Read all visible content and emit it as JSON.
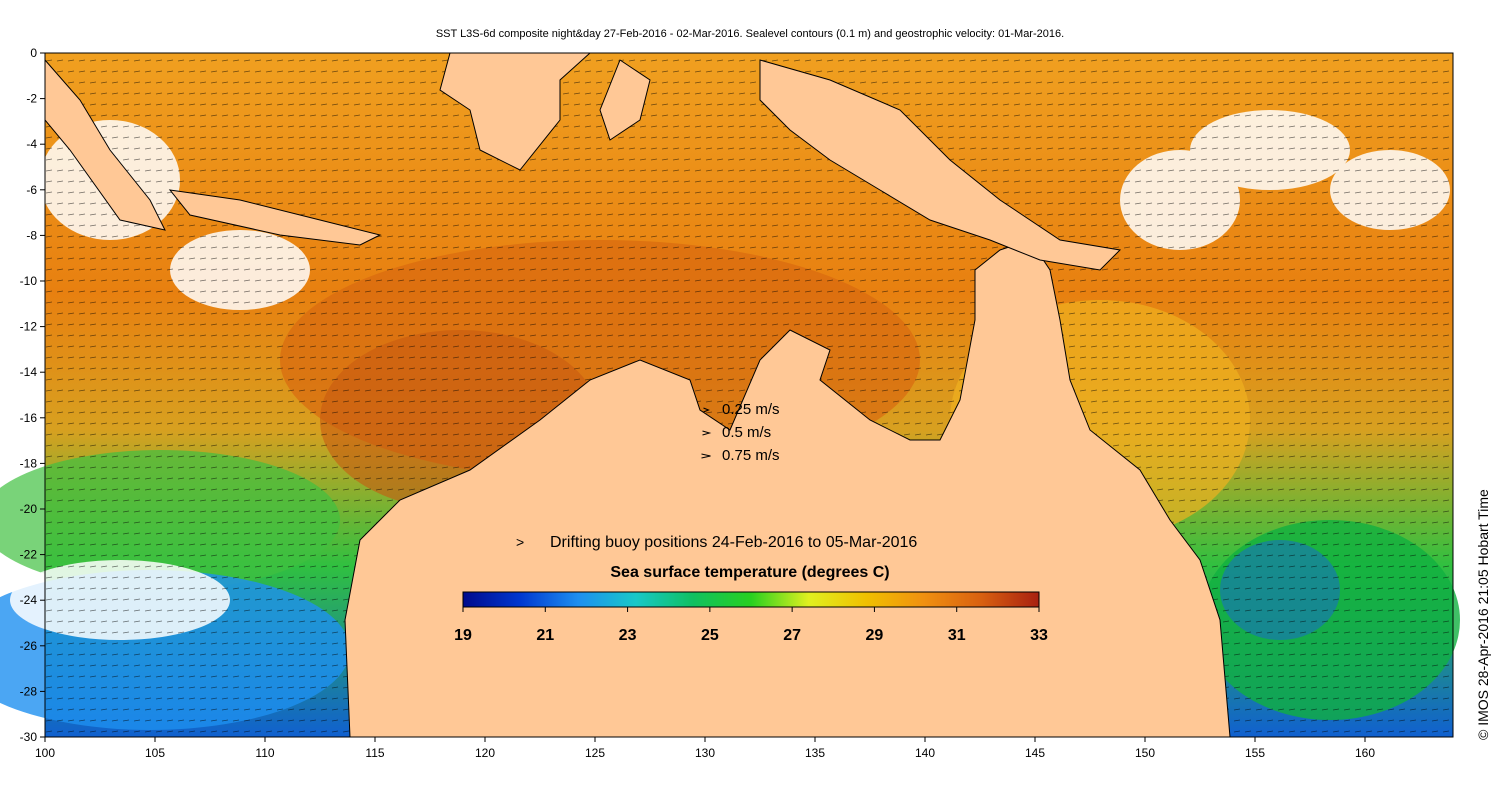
{
  "title": "SST L3S-6d composite night&day 27-Feb-2016 - 02-Mar-2016. Sealevel contours (0.1 m) and geostrophic velocity: 01-Mar-2016.",
  "credit": "© IMOS 28-Apr-2016 21:05 Hobart Time",
  "axes": {
    "x_ticks": [
      "100",
      "105",
      "110",
      "115",
      "120",
      "125",
      "130",
      "135",
      "140",
      "145",
      "150",
      "155",
      "160"
    ],
    "y_ticks": [
      "0",
      "-2",
      "-4",
      "-6",
      "-8",
      "-10",
      "-12",
      "-14",
      "-16",
      "-18",
      "-20",
      "-22",
      "-24",
      "-26",
      "-28",
      "-30"
    ],
    "lon_range": [
      100,
      164
    ],
    "lat_range": [
      -30,
      0
    ]
  },
  "velocity_legend": [
    {
      "label": "0.25 m/s",
      "speed": 0.25
    },
    {
      "label": "0.5 m/s",
      "speed": 0.5
    },
    {
      "label": "0.75 m/s",
      "speed": 0.75
    }
  ],
  "buoy_legend": {
    "symbol": ">",
    "label": "Drifting buoy positions 24-Feb-2016 to 05-Mar-2016",
    "color": "#ff00ff"
  },
  "colorbar": {
    "title": "Sea surface temperature (degrees C)",
    "ticks": [
      "19",
      "21",
      "23",
      "25",
      "27",
      "29",
      "31",
      "33"
    ],
    "range": [
      19,
      33
    ],
    "colors": [
      "#000a8c",
      "#0038d0",
      "#1e8ff0",
      "#18c8c8",
      "#10c060",
      "#28d020",
      "#e0f020",
      "#f0c000",
      "#f09010",
      "#d86010",
      "#a82010"
    ]
  },
  "colors": {
    "land": "#ffc896",
    "cloud": "#ffffff",
    "coast": "#000000"
  }
}
